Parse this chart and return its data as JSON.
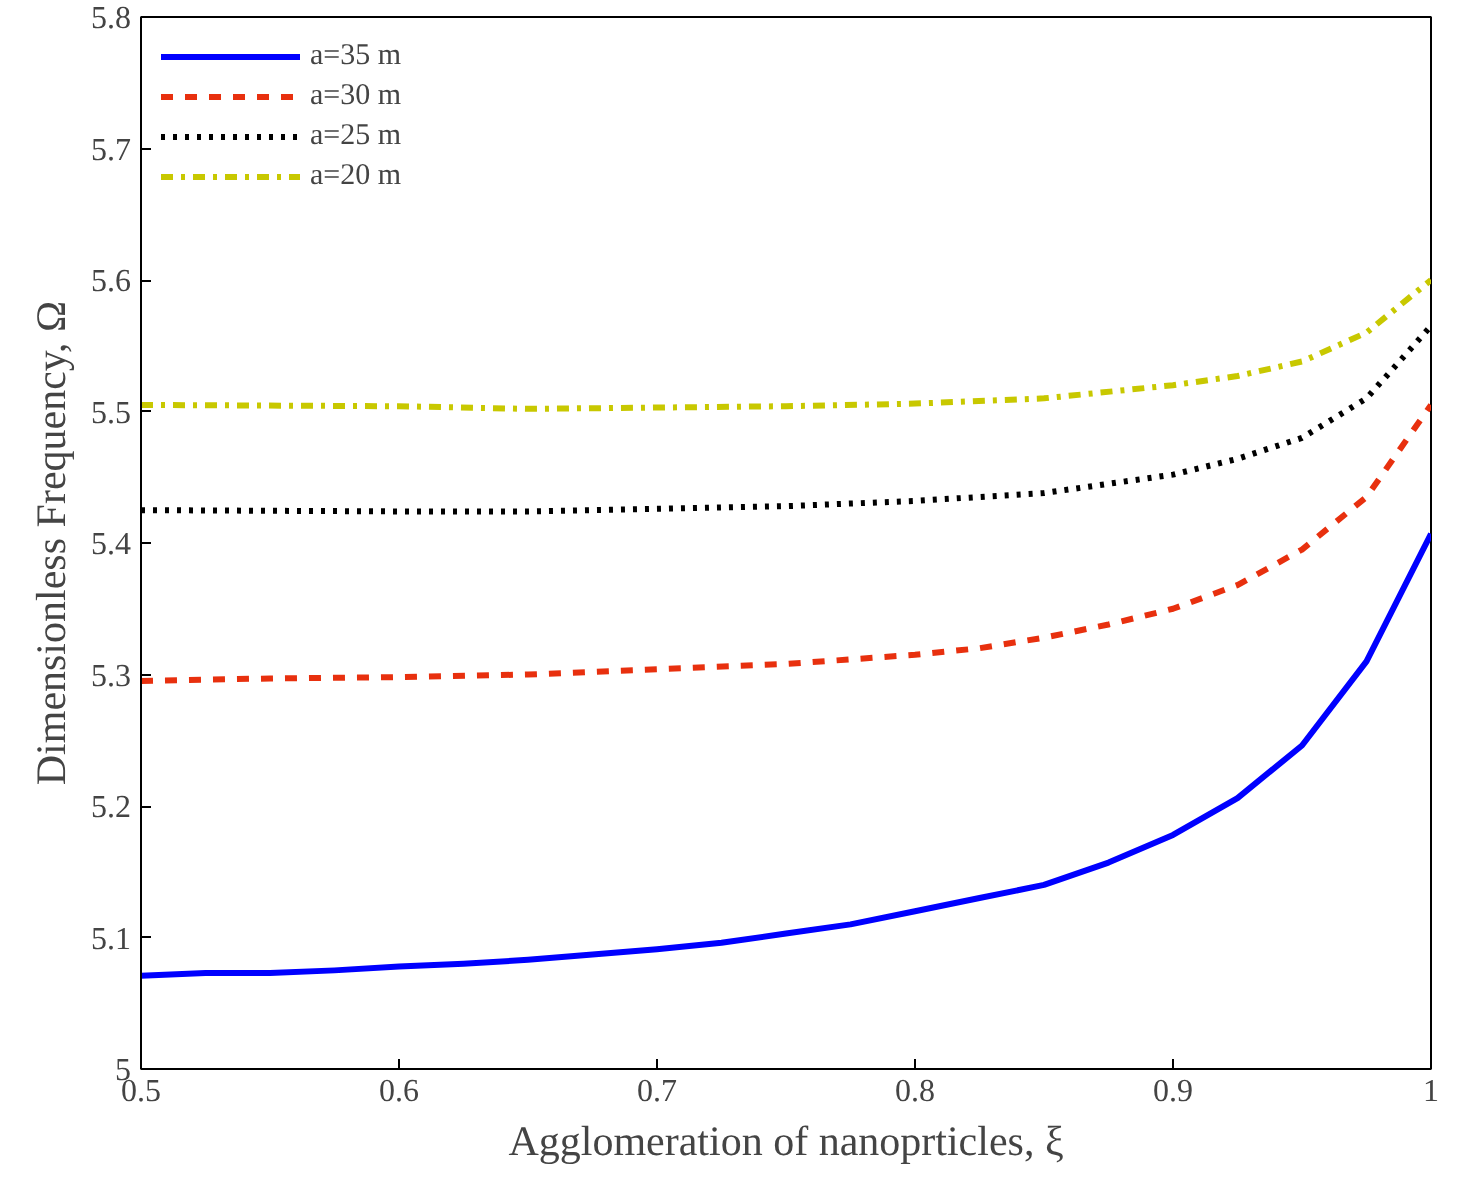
{
  "chart_data": {
    "type": "line",
    "xlabel": "Agglomeration of nanoprticles, ξ",
    "ylabel": "Dimensionless Frequency, Ω",
    "xlim": [
      0.5,
      1
    ],
    "xticks": [
      0.5,
      0.6,
      0.7,
      0.8,
      0.9,
      1
    ],
    "ylim": [
      5,
      5.8
    ],
    "yticks": [
      5,
      5.1,
      5.2,
      5.3,
      5.4,
      5.5,
      5.6,
      5.7,
      5.8
    ],
    "grid": false,
    "legend": "top left",
    "series": [
      {
        "name": "a=35 m",
        "color": "#0000ff",
        "line_style": "solid",
        "x": [
          0.5,
          0.525,
          0.55,
          0.575,
          0.6,
          0.625,
          0.65,
          0.675,
          0.7,
          0.725,
          0.75,
          0.775,
          0.8,
          0.825,
          0.85,
          0.875,
          0.9,
          0.925,
          0.95,
          0.975,
          1.0
        ],
        "values": [
          5.071,
          5.073,
          5.073,
          5.075,
          5.078,
          5.08,
          5.083,
          5.087,
          5.091,
          5.096,
          5.103,
          5.11,
          5.12,
          5.13,
          5.14,
          5.157,
          5.178,
          5.206,
          5.246,
          5.31,
          5.407
        ]
      },
      {
        "name": "a=30 m",
        "color": "#e8300e",
        "line_style": "dashed",
        "x": [
          0.5,
          0.55,
          0.6,
          0.65,
          0.7,
          0.75,
          0.8,
          0.825,
          0.85,
          0.875,
          0.9,
          0.925,
          0.95,
          0.975,
          1.0
        ],
        "values": [
          5.295,
          5.297,
          5.298,
          5.3,
          5.304,
          5.308,
          5.315,
          5.32,
          5.328,
          5.338,
          5.35,
          5.368,
          5.395,
          5.435,
          5.505
        ]
      },
      {
        "name": "a=25 m",
        "color": "#000000",
        "line_style": "dotted",
        "x": [
          0.5,
          0.6,
          0.65,
          0.7,
          0.75,
          0.8,
          0.85,
          0.9,
          0.925,
          0.95,
          0.975,
          1.0
        ],
        "values": [
          5.425,
          5.424,
          5.424,
          5.426,
          5.428,
          5.432,
          5.438,
          5.452,
          5.464,
          5.48,
          5.51,
          5.565
        ]
      },
      {
        "name": "a=20 m",
        "color": "#c8c800",
        "line_style": "dashdot",
        "x": [
          0.5,
          0.6,
          0.65,
          0.7,
          0.75,
          0.8,
          0.85,
          0.9,
          0.925,
          0.95,
          0.975,
          1.0
        ],
        "values": [
          5.505,
          5.504,
          5.502,
          5.503,
          5.504,
          5.506,
          5.51,
          5.52,
          5.527,
          5.538,
          5.56,
          5.6
        ]
      }
    ]
  }
}
